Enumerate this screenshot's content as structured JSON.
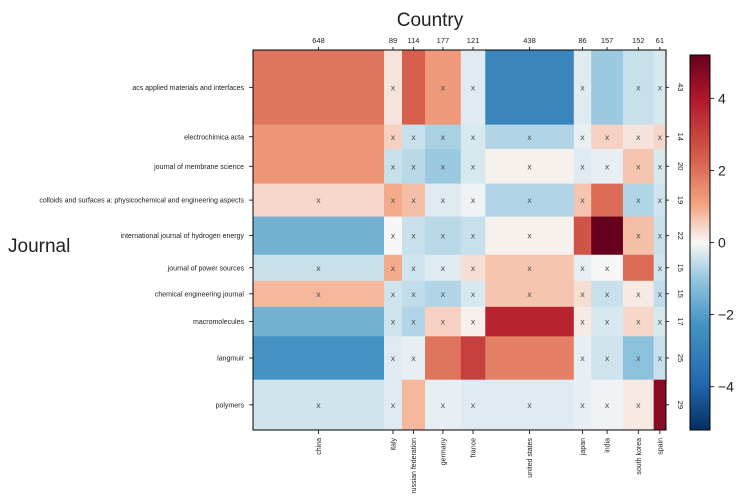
{
  "chart_data": {
    "type": "heatmap",
    "title": "Country",
    "ylabel": "Journal",
    "categories_x": [
      "china",
      "italy",
      "russian federation",
      "germany",
      "france",
      "united states",
      "japan",
      "india",
      "south korea",
      "spain"
    ],
    "x_totals": [
      "648",
      "89",
      "114",
      "177",
      "121",
      "438",
      "86",
      "157",
      "152",
      "61"
    ],
    "categories_y": [
      "acs applied materials and interfaces",
      "electrochimica acta",
      "journal of membrane science",
      "colloids and surfaces a: physicochemical and engineering aspects",
      "international journal of hydrogen energy",
      "journal of power sources ",
      "chemical engineering journal",
      "macromolecules",
      "langmuir",
      "polymers"
    ],
    "y_totals": [
      "43",
      "14",
      "20",
      "19",
      "22",
      "15",
      "15",
      "17",
      "25",
      "29"
    ],
    "values": [
      [
        2.2,
        0.3,
        2.6,
        1.5,
        -0.3,
        -3.0,
        -0.3,
        -1.2,
        -0.6,
        -0.4
      ],
      [
        1.6,
        0.6,
        -0.6,
        -1.0,
        -0.4,
        -0.9,
        -0.2,
        0.6,
        0.3,
        0.5
      ],
      [
        1.6,
        -0.6,
        -0.8,
        -1.2,
        -0.4,
        0.1,
        -0.3,
        -0.2,
        0.8,
        -0.4
      ],
      [
        0.5,
        1.2,
        0.9,
        -0.3,
        -0.1,
        -0.9,
        0.8,
        2.4,
        -0.9,
        -0.5
      ],
      [
        -1.8,
        0.0,
        -0.6,
        -0.8,
        -0.6,
        0.1,
        2.8,
        5.2,
        0.9,
        -0.6
      ],
      [
        -0.6,
        1.2,
        -0.5,
        -0.3,
        0.4,
        0.8,
        -0.2,
        0.0,
        2.4,
        -0.5
      ],
      [
        1.0,
        -0.5,
        -0.7,
        -0.9,
        -0.4,
        0.8,
        0.4,
        -0.6,
        0.2,
        -0.7
      ],
      [
        -1.8,
        -0.5,
        -0.9,
        0.6,
        0.1,
        3.7,
        0.2,
        -0.4,
        0.5,
        -0.4
      ],
      [
        -2.6,
        -0.3,
        -0.2,
        2.2,
        3.2,
        2.0,
        -0.2,
        -0.5,
        -1.4,
        -0.6
      ],
      [
        -0.5,
        -0.3,
        1.0,
        -0.2,
        -0.3,
        -0.3,
        -0.2,
        -0.1,
        0.2,
        4.6
      ]
    ],
    "x_marks": [
      [
        false,
        true,
        false,
        true,
        true,
        false,
        true,
        false,
        true,
        true
      ],
      [
        false,
        true,
        true,
        true,
        true,
        true,
        true,
        true,
        true,
        true
      ],
      [
        false,
        true,
        true,
        true,
        true,
        true,
        true,
        true,
        true,
        true
      ],
      [
        true,
        true,
        true,
        true,
        true,
        true,
        true,
        false,
        true,
        true
      ],
      [
        false,
        true,
        true,
        true,
        true,
        true,
        false,
        false,
        true,
        true
      ],
      [
        true,
        true,
        true,
        true,
        true,
        true,
        true,
        true,
        false,
        true
      ],
      [
        true,
        true,
        true,
        true,
        true,
        true,
        true,
        true,
        true,
        true
      ],
      [
        false,
        true,
        true,
        true,
        true,
        false,
        true,
        true,
        true,
        true
      ],
      [
        false,
        true,
        true,
        false,
        false,
        false,
        true,
        true,
        true,
        true
      ],
      [
        true,
        true,
        false,
        true,
        true,
        true,
        true,
        true,
        true,
        false
      ]
    ],
    "colorbar": {
      "ticks": [
        "4",
        "2",
        "0",
        "−2",
        "−4"
      ],
      "range": [
        -5.2,
        5.2
      ]
    },
    "mark_symbol": "x",
    "colors": {
      "neg": "#053061",
      "zero": "#f7f7f7",
      "pos": "#67001f"
    }
  }
}
